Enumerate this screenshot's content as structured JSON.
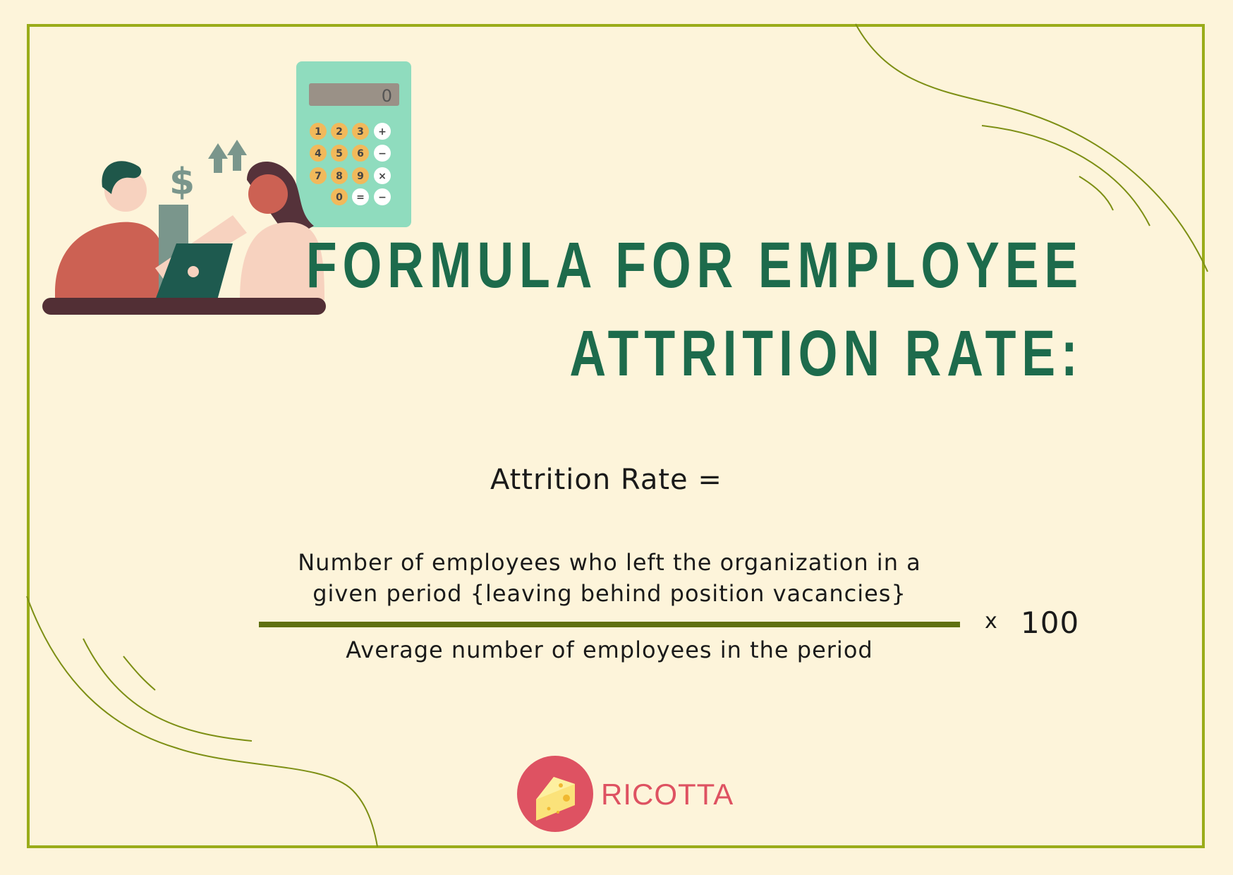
{
  "title": {
    "line1": "FORMULA FOR EMPLOYEE",
    "line2": "ATTRITION RATE:"
  },
  "formula": {
    "lhs": "Attrition Rate =",
    "numerator_line1": "Number of employees who left the organization in a",
    "numerator_line2": "given period {leaving behind position vacancies}",
    "denominator": "Average number of employees in the period",
    "multiply_sign": "x",
    "multiplier": "100"
  },
  "illustration": {
    "calculator_display": "0",
    "calculator_keys": [
      "1",
      "2",
      "3",
      "+",
      "4",
      "5",
      "6",
      "−",
      "7",
      "8",
      "9",
      "×",
      "",
      "0",
      "=",
      "−"
    ],
    "currency_symbol": "$"
  },
  "logo": {
    "text": "RICOTTA",
    "icon": "cheese-icon"
  },
  "colors": {
    "background": "#fdf4da",
    "border": "#9aac1a",
    "title": "#1d6b4c",
    "rule": "#5e7010",
    "logo": "#de5262"
  }
}
